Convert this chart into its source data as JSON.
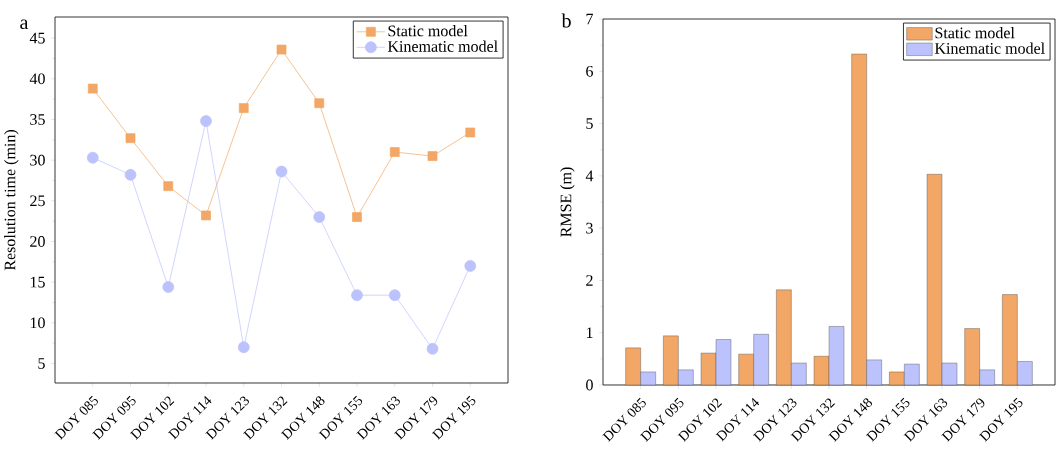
{
  "chart_data": [
    {
      "type": "line",
      "ylabel": "Resolution time (min)",
      "annotations": [
        "a"
      ],
      "categories": [
        "DOY 085",
        "DOY 095",
        "DOY 102",
        "DOY 114",
        "DOY 123",
        "DOY 132",
        "DOY 148",
        "DOY 155",
        "DOY 163",
        "DOY 179",
        "DOY 195"
      ],
      "series": [
        {
          "name": "Static model",
          "color": "#f2a766",
          "marker": "square",
          "values": [
            38.8,
            32.7,
            26.8,
            23.2,
            36.4,
            43.6,
            37.0,
            23.0,
            31.0,
            30.5,
            33.4
          ]
        },
        {
          "name": "Kinematic model",
          "color": "#bcc3fc",
          "marker": "circle",
          "values": [
            30.3,
            28.2,
            14.4,
            34.8,
            7.0,
            28.6,
            23.0,
            13.4,
            13.4,
            6.8,
            17.0
          ]
        }
      ],
      "ylim": [
        2.6,
        47.6
      ],
      "yticks": [
        5,
        10,
        15,
        20,
        25,
        30,
        35,
        40,
        45
      ],
      "legend": "top right",
      "grid": false
    },
    {
      "type": "bar",
      "ylabel": "RMSE (m)",
      "annotations": [
        "b"
      ],
      "categories": [
        "DOY 085",
        "DOY 095",
        "DOY 102",
        "DOY 114",
        "DOY 123",
        "DOY 132",
        "DOY 148",
        "DOY 155",
        "DOY 163",
        "DOY 179",
        "DOY 195"
      ],
      "series": [
        {
          "name": "Static model",
          "color": "#f2a766",
          "values": [
            0.71,
            0.94,
            0.61,
            0.59,
            1.82,
            0.55,
            6.33,
            0.25,
            4.03,
            1.08,
            1.73
          ]
        },
        {
          "name": "Kinematic model",
          "color": "#bcc3fc",
          "values": [
            0.25,
            0.29,
            0.87,
            0.97,
            0.42,
            1.12,
            0.48,
            0.4,
            0.42,
            0.29,
            0.45
          ]
        }
      ],
      "ylim": [
        0,
        7
      ],
      "yticks": [
        0,
        1,
        2,
        3,
        4,
        5,
        6,
        7
      ],
      "legend": "top right",
      "grid": false
    }
  ]
}
